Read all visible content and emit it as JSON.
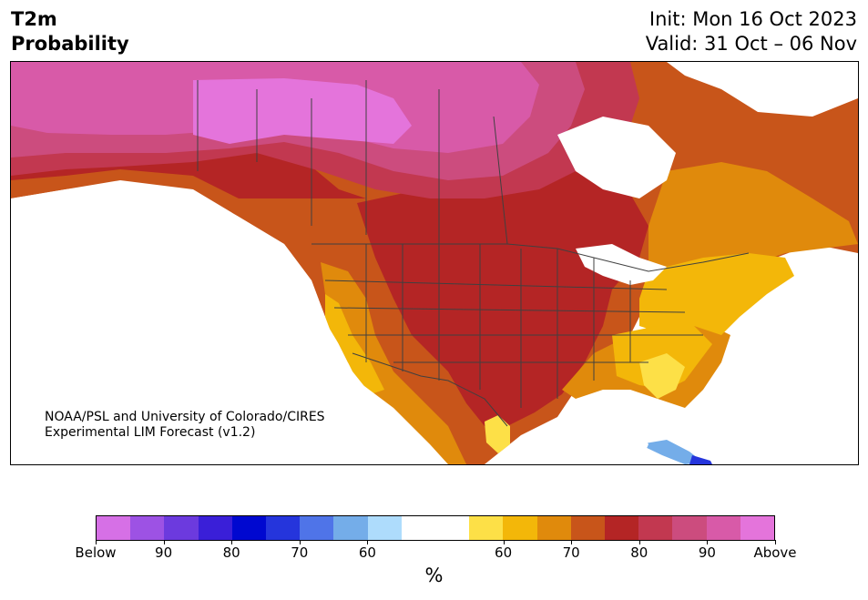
{
  "header": {
    "title_line1": "T2m",
    "title_line2": "Probability",
    "init": "Init: Mon 16 Oct 2023",
    "valid": "Valid: 31 Oct – 06 Nov"
  },
  "map": {
    "credit_line1": "NOAA/PSL and University of Colorado/CIRES",
    "credit_line2": "Experimental LIM Forecast (v1.2)"
  },
  "colorbar": {
    "colors": [
      "#d670e6",
      "#9d52e4",
      "#6c3ade",
      "#3a1fd8",
      "#0008d0",
      "#2535dc",
      "#4f74e8",
      "#74ade9",
      "#aedcfc",
      "#ffffff",
      "#ffffff",
      "#fde047",
      "#f3b709",
      "#e08a0c",
      "#c8551a",
      "#b42525",
      "#c23850",
      "#cc4c7e",
      "#d85aa8",
      "#e474db"
    ],
    "tick_labels": [
      "Below",
      "90",
      "80",
      "70",
      "60",
      "60",
      "70",
      "80",
      "90",
      "Above"
    ],
    "unit": "%"
  },
  "regions": [
    {
      "name": "above-95",
      "color": "#e474db"
    },
    {
      "name": "above-90",
      "color": "#d85aa8"
    },
    {
      "name": "above-85",
      "color": "#cc4c7e"
    },
    {
      "name": "above-80",
      "color": "#c23850"
    },
    {
      "name": "above-75",
      "color": "#b42525"
    },
    {
      "name": "above-70",
      "color": "#c8551a"
    },
    {
      "name": "above-65",
      "color": "#e08a0c"
    },
    {
      "name": "above-60",
      "color": "#f3b709"
    },
    {
      "name": "above-55",
      "color": "#fde047"
    },
    {
      "name": "below-60",
      "color": "#74ade9"
    },
    {
      "name": "below-70",
      "color": "#2535dc"
    }
  ]
}
